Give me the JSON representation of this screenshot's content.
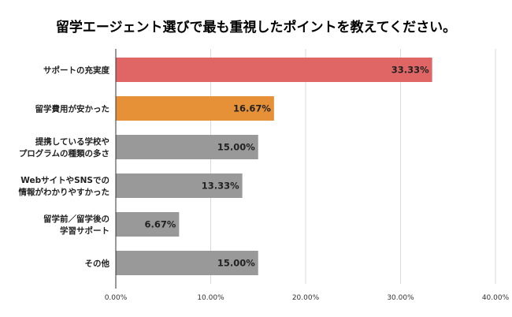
{
  "chart_data": {
    "type": "bar",
    "orientation": "horizontal",
    "title": "留学エージェント選びで最も重視したポイントを教えてください。",
    "categories": [
      [
        "サポートの充実度"
      ],
      [
        "留学費用が安かった"
      ],
      [
        "提携している学校や",
        "プログラムの種類の多さ"
      ],
      [
        "Webサイトやsnsでの",
        "情報がわかりやすかった"
      ],
      [
        "留学前／留学後の",
        "学習サポート"
      ],
      [
        "その他"
      ]
    ],
    "values": [
      33.33,
      16.67,
      15.0,
      13.33,
      6.67,
      15.0
    ],
    "data_labels": [
      "33.33%",
      "16.67%",
      "15.00%",
      "13.33%",
      "6.67%",
      "15.00%"
    ],
    "colors": [
      "#e06666",
      "#e69138",
      "#999999",
      "#999999",
      "#999999",
      "#999999"
    ],
    "xlim": [
      0,
      40
    ],
    "x_ticks": [
      "0.00%",
      "10.00%",
      "20.00%",
      "30.00%",
      "40.00%"
    ],
    "grid": true,
    "legend": "none"
  }
}
